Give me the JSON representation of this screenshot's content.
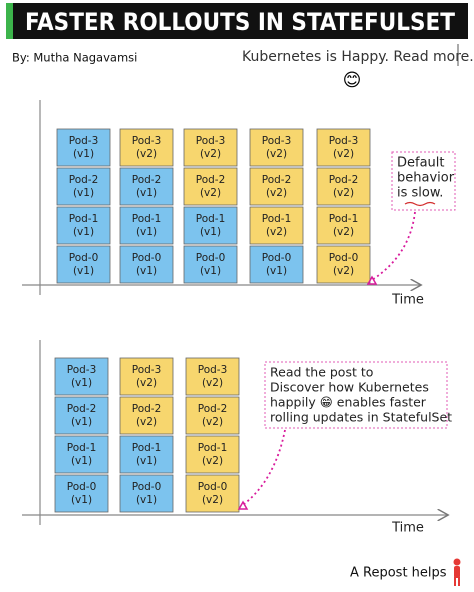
{
  "header": {
    "title": "FASTER ROLLOUTS IN STATEFULSET",
    "author": "By: Mutha Nagavamsi",
    "tagline": "Kubernetes is Happy. Read more..",
    "emoji": "😊"
  },
  "panels": [
    {
      "axis_label": "Time",
      "note": [
        "Default",
        "behavior",
        "is slow."
      ],
      "columns": [
        [
          {
            "name": "Pod-3",
            "version": "(v1)",
            "color": "#7cc3ee"
          },
          {
            "name": "Pod-2",
            "version": "(v1)",
            "color": "#7cc3ee"
          },
          {
            "name": "Pod-1",
            "version": "(v1)",
            "color": "#7cc3ee"
          },
          {
            "name": "Pod-0",
            "version": "(v1)",
            "color": "#7cc3ee"
          }
        ],
        [
          {
            "name": "Pod-3",
            "version": "(v2)",
            "color": "#f7d66e"
          },
          {
            "name": "Pod-2",
            "version": "(v1)",
            "color": "#7cc3ee"
          },
          {
            "name": "Pod-1",
            "version": "(v1)",
            "color": "#7cc3ee"
          },
          {
            "name": "Pod-0",
            "version": "(v1)",
            "color": "#7cc3ee"
          }
        ],
        [
          {
            "name": "Pod-3",
            "version": "(v2)",
            "color": "#f7d66e"
          },
          {
            "name": "Pod-2",
            "version": "(v2)",
            "color": "#f7d66e"
          },
          {
            "name": "Pod-1",
            "version": "(v1)",
            "color": "#7cc3ee"
          },
          {
            "name": "Pod-0",
            "version": "(v1)",
            "color": "#7cc3ee"
          }
        ],
        [
          {
            "name": "Pod-3",
            "version": "(v2)",
            "color": "#f7d66e"
          },
          {
            "name": "Pod-2",
            "version": "(v2)",
            "color": "#f7d66e"
          },
          {
            "name": "Pod-1",
            "version": "(v2)",
            "color": "#f7d66e"
          },
          {
            "name": "Pod-0",
            "version": "(v1)",
            "color": "#7cc3ee"
          }
        ],
        [
          {
            "name": "Pod-3",
            "version": "(v2)",
            "color": "#f7d66e"
          },
          {
            "name": "Pod-2",
            "version": "(v2)",
            "color": "#f7d66e"
          },
          {
            "name": "Pod-1",
            "version": "(v2)",
            "color": "#f7d66e"
          },
          {
            "name": "Pod-0",
            "version": "(v2)",
            "color": "#f7d66e"
          }
        ]
      ]
    },
    {
      "axis_label": "Time",
      "note": [
        "Read the post to",
        "Discover how Kubernetes",
        "happily 😁 enables faster",
        "rolling updates in StatefulSet"
      ],
      "columns": [
        [
          {
            "name": "Pod-3",
            "version": "(v1)",
            "color": "#7cc3ee"
          },
          {
            "name": "Pod-2",
            "version": "(v1)",
            "color": "#7cc3ee"
          },
          {
            "name": "Pod-1",
            "version": "(v1)",
            "color": "#7cc3ee"
          },
          {
            "name": "Pod-0",
            "version": "(v1)",
            "color": "#7cc3ee"
          }
        ],
        [
          {
            "name": "Pod-3",
            "version": "(v2)",
            "color": "#f7d66e"
          },
          {
            "name": "Pod-2",
            "version": "(v2)",
            "color": "#f7d66e"
          },
          {
            "name": "Pod-1",
            "version": "(v1)",
            "color": "#7cc3ee"
          },
          {
            "name": "Pod-0",
            "version": "(v1)",
            "color": "#7cc3ee"
          }
        ],
        [
          {
            "name": "Pod-3",
            "version": "(v2)",
            "color": "#f7d66e"
          },
          {
            "name": "Pod-2",
            "version": "(v2)",
            "color": "#f7d66e"
          },
          {
            "name": "Pod-1",
            "version": "(v2)",
            "color": "#f7d66e"
          },
          {
            "name": "Pod-0",
            "version": "(v2)",
            "color": "#f7d66e"
          }
        ]
      ]
    }
  ],
  "footer": {
    "text": "A Repost helps"
  }
}
